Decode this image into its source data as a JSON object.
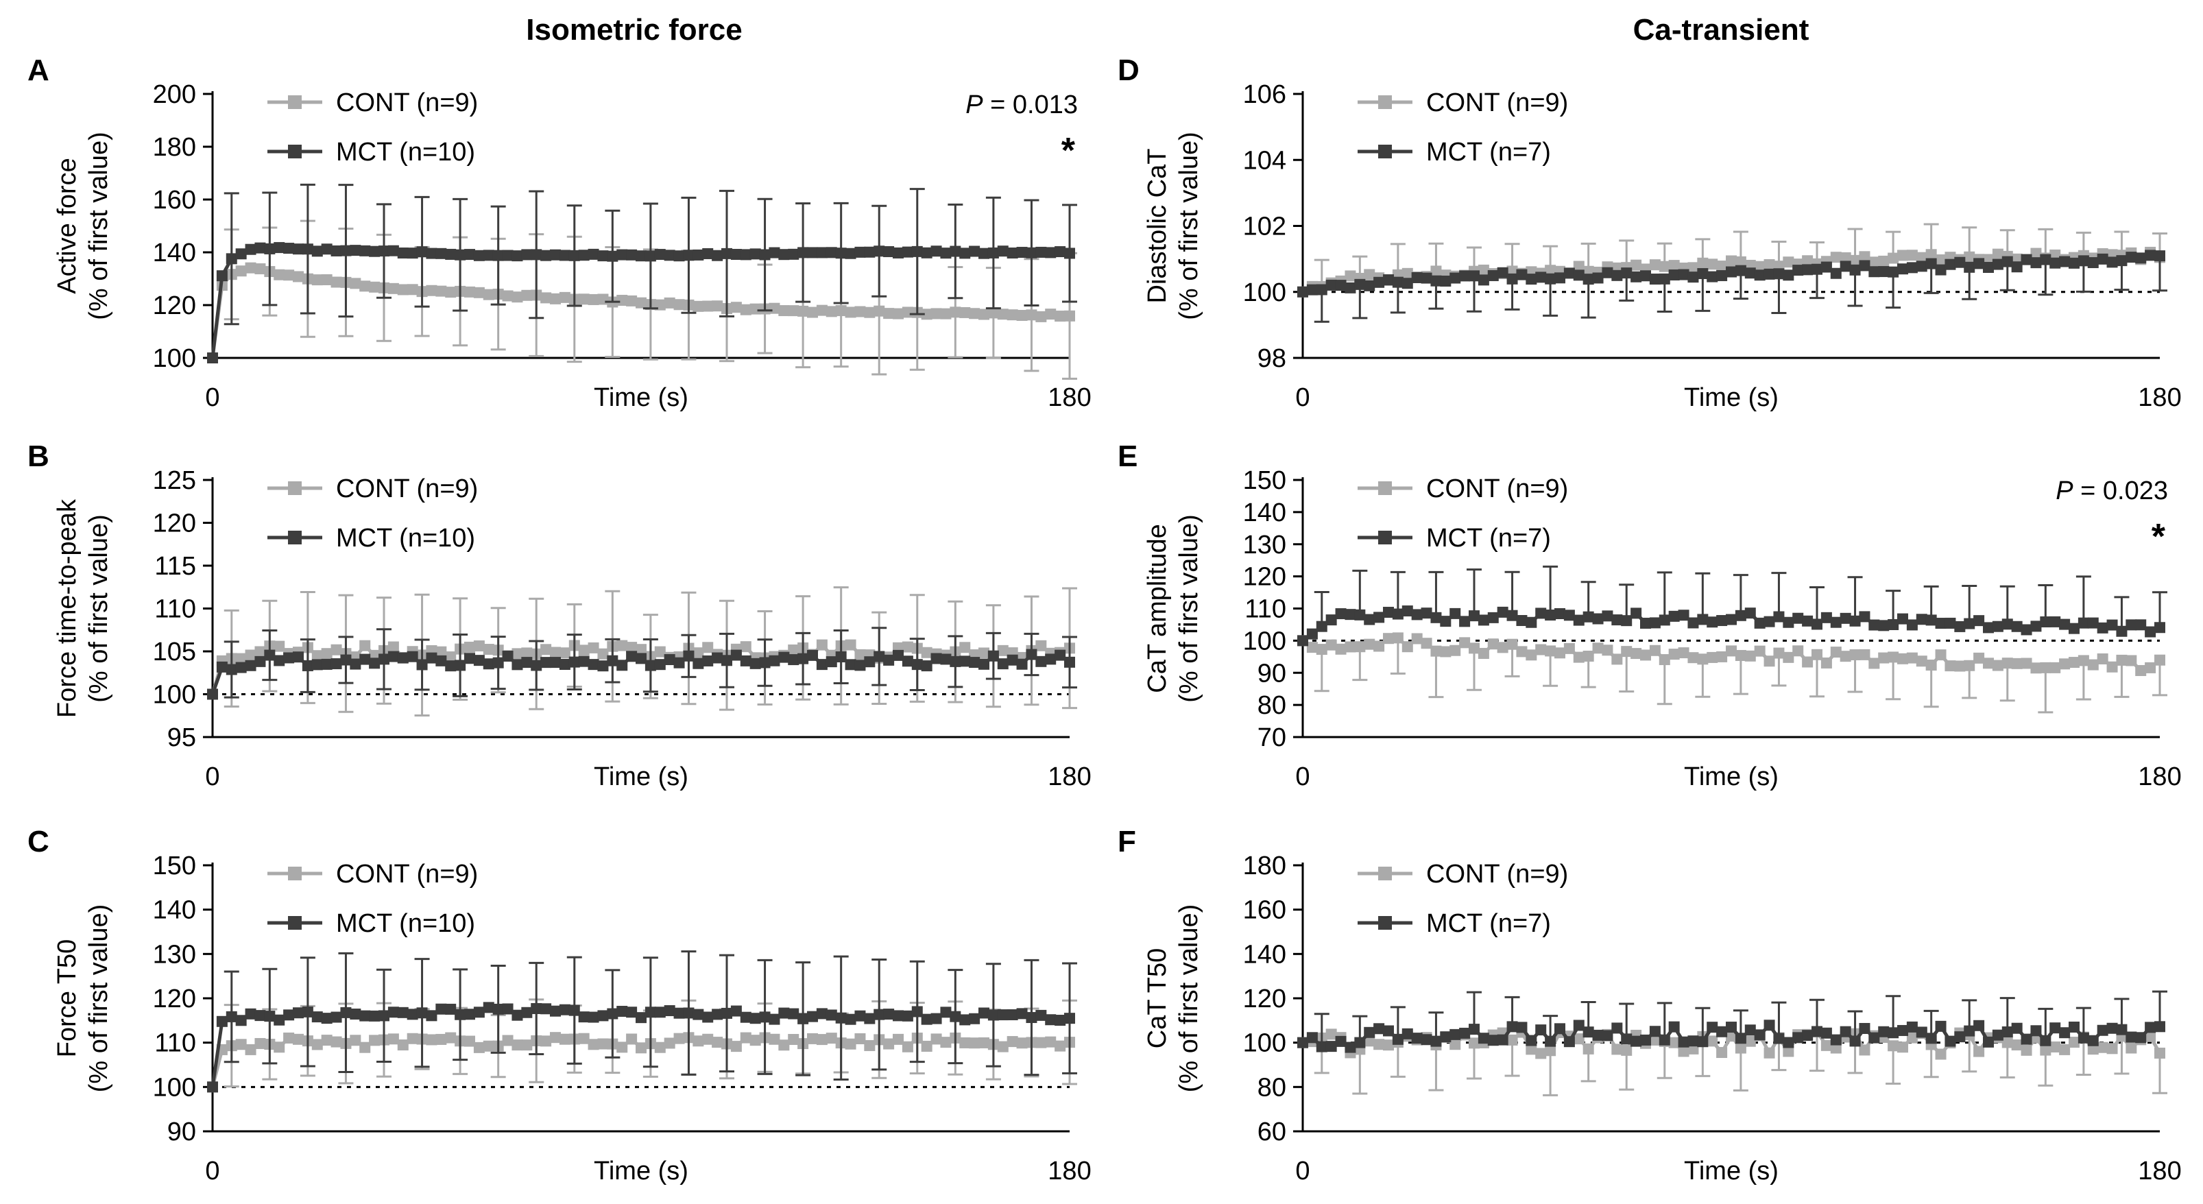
{
  "figure": {
    "column_titles": [
      "Isometric force",
      "Ca-transient"
    ],
    "colors": {
      "cont": "#aaaaaa",
      "mct": "#3d3d3d",
      "axis": "#000000"
    },
    "shared": {
      "ylabel_line2": "(% of first value)",
      "xlabel": "Time (s)"
    }
  },
  "chart_data": [
    {
      "type": "line",
      "panel_letter": "A",
      "title": "Isometric force",
      "ylabel": "Active force",
      "ylabel_line2": "(% of first value)",
      "xlabel": "Time (s)",
      "xlim": [
        0,
        180
      ],
      "x_ticks": [
        "0",
        "180"
      ],
      "ylim": [
        100,
        200
      ],
      "y_ticks": [
        100,
        120,
        140,
        160,
        180,
        200
      ],
      "baseline": 100,
      "legend": [
        "CONT (n=9)",
        "MCT (n=10)"
      ],
      "annotation": "P = 0.013",
      "significance": "*",
      "series": [
        {
          "name": "CONT (n=9)",
          "keyframes": [
            [
              0,
              100
            ],
            [
              1,
              124
            ],
            [
              3,
              131
            ],
            [
              8,
              134
            ],
            [
              20,
              130
            ],
            [
              40,
              126
            ],
            [
              60,
              124
            ],
            [
              80,
              122
            ],
            [
              100,
              120
            ],
            [
              120,
              118
            ],
            [
              150,
              117
            ],
            [
              180,
              116
            ]
          ],
          "error": 20,
          "error_dir": "both",
          "noise": 0.6,
          "seed": 11
        },
        {
          "name": "MCT (n=10)",
          "keyframes": [
            [
              0,
              100
            ],
            [
              1,
              128
            ],
            [
              4,
              138
            ],
            [
              10,
              142
            ],
            [
              20,
              141
            ],
            [
              40,
              140
            ],
            [
              60,
              139
            ],
            [
              80,
              139
            ],
            [
              100,
              139
            ],
            [
              130,
              140
            ],
            [
              150,
              140
            ],
            [
              180,
              140
            ]
          ],
          "error": 21,
          "error_dir": "both",
          "noise": 0.5,
          "seed": 12
        }
      ]
    },
    {
      "type": "line",
      "panel_letter": "B",
      "ylabel": "Force time-to-peak",
      "ylabel_line2": "(% of first value)",
      "xlabel": "Time (s)",
      "xlim": [
        0,
        180
      ],
      "x_ticks": [
        "0",
        "180"
      ],
      "ylim": [
        95,
        125
      ],
      "y_ticks": [
        95,
        100,
        105,
        110,
        115,
        120,
        125
      ],
      "baseline": 100,
      "legend": [
        "CONT (n=9)",
        "MCT (n=10)"
      ],
      "series": [
        {
          "name": "CONT (n=9)",
          "keyframes": [
            [
              0,
              100
            ],
            [
              2,
              104
            ],
            [
              10,
              105
            ],
            [
              60,
              105
            ],
            [
              120,
              105
            ],
            [
              180,
              105
            ]
          ],
          "error": 6,
          "error_dir": "both",
          "noise": 0.8,
          "seed": 21
        },
        {
          "name": "MCT (n=10)",
          "keyframes": [
            [
              0,
              100
            ],
            [
              2,
              103
            ],
            [
              10,
              104
            ],
            [
              60,
              104
            ],
            [
              120,
              104
            ],
            [
              180,
              104
            ]
          ],
          "error": 3,
          "error_dir": "both",
          "noise": 0.7,
          "seed": 22
        }
      ]
    },
    {
      "type": "line",
      "panel_letter": "C",
      "ylabel": "Force T50",
      "ylabel_line2": "(% of first value)",
      "xlabel": "Time (s)",
      "xlim": [
        0,
        180
      ],
      "x_ticks": [
        "0",
        "180"
      ],
      "ylim": [
        90,
        150
      ],
      "y_ticks": [
        90,
        100,
        110,
        120,
        130,
        140,
        150
      ],
      "baseline": 100,
      "legend": [
        "CONT (n=9)",
        "MCT (n=10)"
      ],
      "series": [
        {
          "name": "CONT (n=9)",
          "keyframes": [
            [
              0,
              100
            ],
            [
              2,
              108
            ],
            [
              10,
              110
            ],
            [
              60,
              110
            ],
            [
              120,
              110
            ],
            [
              180,
              110
            ]
          ],
          "error": 8,
          "error_dir": "both",
          "noise": 1.2,
          "seed": 31
        },
        {
          "name": "MCT (n=10)",
          "keyframes": [
            [
              0,
              100
            ],
            [
              2,
              115
            ],
            [
              10,
              116
            ],
            [
              60,
              117
            ],
            [
              120,
              116
            ],
            [
              180,
              116
            ]
          ],
          "error": 12,
          "error_dir": "both",
          "noise": 1.0,
          "seed": 32
        }
      ]
    },
    {
      "type": "line",
      "panel_letter": "D",
      "title": "Ca-transient",
      "ylabel": "Diastolic CaT",
      "ylabel_line2": "(% of first value)",
      "xlabel": "Time (s)",
      "xlim": [
        0,
        180
      ],
      "x_ticks": [
        "0",
        "180"
      ],
      "ylim": [
        98,
        106
      ],
      "y_ticks": [
        98,
        100,
        102,
        104,
        106
      ],
      "baseline": 100,
      "legend": [
        "CONT (n=9)",
        "MCT (n=7)"
      ],
      "series": [
        {
          "name": "CONT (n=9)",
          "keyframes": [
            [
              0,
              100
            ],
            [
              10,
              100.4
            ],
            [
              40,
              100.6
            ],
            [
              80,
              100.8
            ],
            [
              120,
              101
            ],
            [
              180,
              101.1
            ]
          ],
          "error": 0.8,
          "error_dir": "up",
          "noise": 0.12,
          "seed": 41
        },
        {
          "name": "MCT (n=7)",
          "keyframes": [
            [
              0,
              100
            ],
            [
              10,
              100.2
            ],
            [
              40,
              100.5
            ],
            [
              80,
              100.5
            ],
            [
              120,
              100.7
            ],
            [
              180,
              101
            ]
          ],
          "error": 1.0,
          "error_dir": "down",
          "noise": 0.12,
          "seed": 42
        }
      ]
    },
    {
      "type": "line",
      "panel_letter": "E",
      "ylabel": "CaT amplitude",
      "ylabel_line2": "(% of first value)",
      "xlabel": "Time (s)",
      "xlim": [
        0,
        180
      ],
      "x_ticks": [
        "0",
        "180"
      ],
      "ylim": [
        70,
        150
      ],
      "y_ticks": [
        70,
        80,
        90,
        100,
        110,
        120,
        130,
        140,
        150
      ],
      "baseline": 100,
      "legend": [
        "CONT (n=9)",
        "MCT (n=7)"
      ],
      "annotation": "P = 0.023",
      "significance": "*",
      "series": [
        {
          "name": "CONT (n=9)",
          "keyframes": [
            [
              0,
              100
            ],
            [
              3,
              99
            ],
            [
              20,
              99
            ],
            [
              60,
              96
            ],
            [
              100,
              95
            ],
            [
              140,
              94
            ],
            [
              180,
              92
            ]
          ],
          "error": 12,
          "error_dir": "down",
          "noise": 2.0,
          "seed": 51
        },
        {
          "name": "MCT (n=7)",
          "keyframes": [
            [
              0,
              100
            ],
            [
              4,
              106
            ],
            [
              10,
              108
            ],
            [
              60,
              107
            ],
            [
              100,
              107
            ],
            [
              140,
              105
            ],
            [
              180,
              104
            ]
          ],
          "error": 13,
          "error_dir": "up",
          "noise": 1.6,
          "seed": 52
        }
      ]
    },
    {
      "type": "line",
      "panel_letter": "F",
      "ylabel": "CaT T50",
      "ylabel_line2": "(% of first value)",
      "xlabel": "Time (s)",
      "xlim": [
        0,
        180
      ],
      "x_ticks": [
        "0",
        "180"
      ],
      "ylim": [
        60,
        180
      ],
      "y_ticks": [
        60,
        80,
        100,
        120,
        140,
        160,
        180
      ],
      "baseline": 100,
      "legend": [
        "CONT (n=9)",
        "MCT (n=7)"
      ],
      "series": [
        {
          "name": "CONT (n=9)",
          "keyframes": [
            [
              0,
              100
            ],
            [
              20,
              100
            ],
            [
              60,
              100
            ],
            [
              120,
              100
            ],
            [
              180,
              99
            ]
          ],
          "error": 18,
          "error_dir": "down",
          "noise": 5.0,
          "seed": 61
        },
        {
          "name": "MCT (n=7)",
          "keyframes": [
            [
              0,
              100
            ],
            [
              20,
              103
            ],
            [
              60,
              104
            ],
            [
              120,
              104
            ],
            [
              180,
              104
            ]
          ],
          "error": 14,
          "error_dir": "up",
          "noise": 4.0,
          "seed": 62
        }
      ]
    }
  ]
}
